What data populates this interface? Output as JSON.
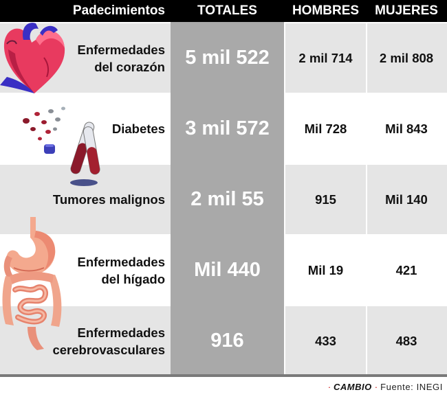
{
  "table": {
    "headers": {
      "padecimientos": "Padecimientos",
      "totales": "TOTALES",
      "hombres": "HOMBRES",
      "mujeres": "MUJERES"
    },
    "rows": [
      {
        "line1": "Enfermedades",
        "line2": "del corazón",
        "total": "5 mil 522",
        "hombres": "2 mil 714",
        "mujeres": "2 mil 808",
        "icon": "heart-icon"
      },
      {
        "line1": "Diabetes",
        "line2": "",
        "total": "3 mil 572",
        "hombres": "Mil 728",
        "mujeres": "Mil 843",
        "icon": "test-tubes-icon"
      },
      {
        "line1": "Tumores malignos",
        "line2": "",
        "total": "2 mil 55",
        "hombres": "915",
        "mujeres": "Mil 140",
        "icon": ""
      },
      {
        "line1": "Enfermedades",
        "line2": "del hígado",
        "total": "Mil 440",
        "hombres": "Mil 19",
        "mujeres": "421",
        "icon": "stomach-icon"
      },
      {
        "line1": "Enfermedades",
        "line2": "cerebrovasculares",
        "total": "916",
        "hombres": "433",
        "mujeres": "483",
        "icon": "intestine-icon"
      }
    ]
  },
  "footer": {
    "brand": "CAMBIO",
    "source": "Fuente: INEGI"
  },
  "colors": {
    "header_bg": "#000000",
    "totals_column": "#a9a9a9",
    "row_shade": "#e5e5e5",
    "accent_dot": "#cc0000"
  }
}
